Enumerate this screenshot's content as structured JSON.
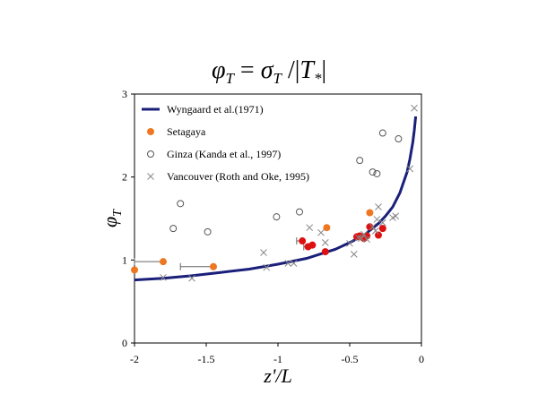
{
  "chart_data": {
    "type": "scatter",
    "title_parts": {
      "lhs": "φ",
      "lhs_sub": "T",
      "eq": " = ",
      "sigma": "σ",
      "sigma_sub": "T",
      "slash": " /",
      "abs_open": "|",
      "t": "T",
      "t_sub": "*",
      "abs_close": "|"
    },
    "xlabel": "z'/L",
    "ylabel": "φ",
    "ylabel_sub": "T",
    "xlim": [
      -2,
      0
    ],
    "ylim": [
      0,
      3
    ],
    "xticks": [
      "-2",
      "-1.5",
      "-1",
      "-0.5",
      "0"
    ],
    "yticks": [
      "0",
      "1",
      "2",
      "3"
    ],
    "legend_position": "top-left",
    "series": [
      {
        "name": "Wyngaard et al.(1971)",
        "marker": "line",
        "color": "#1a1f7a",
        "curve_model": "0.95/cbrt(0.05 - 15x)",
        "x": [
          -2.0,
          -1.8,
          -1.6,
          -1.4,
          -1.2,
          -1.0,
          -0.8,
          -0.6,
          -0.5,
          -0.4,
          -0.3,
          -0.25,
          -0.2,
          -0.15,
          -0.1,
          -0.08,
          -0.06,
          -0.05,
          -0.04
        ],
        "y": [
          0.76,
          0.78,
          0.81,
          0.85,
          0.89,
          0.95,
          1.02,
          1.13,
          1.21,
          1.3,
          1.44,
          1.53,
          1.64,
          1.81,
          2.06,
          2.22,
          2.42,
          2.56,
          2.73
        ]
      },
      {
        "name": "Setagaya",
        "marker": "filled-circle",
        "color": "#ee7722",
        "x": [
          -2.0,
          -1.8,
          -1.45,
          -0.66,
          -0.36
        ],
        "y": [
          0.88,
          0.98,
          0.92,
          1.39,
          1.57
        ]
      },
      {
        "name": "",
        "marker": "filled-circle",
        "color": "#dd1111",
        "x": [
          -0.83,
          -0.79,
          -0.76,
          -0.67,
          -0.45,
          -0.43,
          -0.4,
          -0.38,
          -0.36,
          -0.3,
          -0.27
        ],
        "y": [
          1.23,
          1.16,
          1.18,
          1.1,
          1.28,
          1.29,
          1.26,
          1.29,
          1.4,
          1.3,
          1.38
        ]
      },
      {
        "name": "Ginza (Kanda et al., 1997)",
        "marker": "open-circle",
        "color": "#555555",
        "x": [
          -1.73,
          -1.68,
          -1.49,
          -1.01,
          -0.85,
          -0.43,
          -0.34,
          -0.31,
          -0.27,
          -0.16
        ],
        "y": [
          1.38,
          1.68,
          1.34,
          1.52,
          1.58,
          2.2,
          2.06,
          2.04,
          2.53,
          2.46
        ]
      },
      {
        "name": "Vancouver (Roth and Oke, 1995)",
        "marker": "cross",
        "color": "#888888",
        "x": [
          -1.8,
          -1.6,
          -1.1,
          -1.08,
          -0.93,
          -0.89,
          -0.78,
          -0.7,
          -0.67,
          -0.5,
          -0.47,
          -0.44,
          -0.42,
          -0.4,
          -0.38,
          -0.34,
          -0.32,
          -0.31,
          -0.3,
          -0.27,
          -0.2,
          -0.18,
          -0.08,
          -0.05
        ],
        "y": [
          0.79,
          0.78,
          1.09,
          0.91,
          0.96,
          0.96,
          1.39,
          1.33,
          1.21,
          1.2,
          1.07,
          1.27,
          1.26,
          1.31,
          1.25,
          1.4,
          1.35,
          1.49,
          1.64,
          1.45,
          1.51,
          1.53,
          2.1,
          2.83
        ]
      }
    ],
    "error_bars": [
      {
        "y": 0.98,
        "x_from": -2.0,
        "x_to": -1.8
      },
      {
        "y": 0.92,
        "x_from": -1.68,
        "x_to": -1.45
      },
      {
        "y": 1.23,
        "x_from": -0.87,
        "x_to": -0.83
      },
      {
        "y": 1.16,
        "x_from": -0.82,
        "x_to": -0.79
      },
      {
        "y": 1.28,
        "x_from": -0.45,
        "x_to": -0.43
      }
    ]
  }
}
